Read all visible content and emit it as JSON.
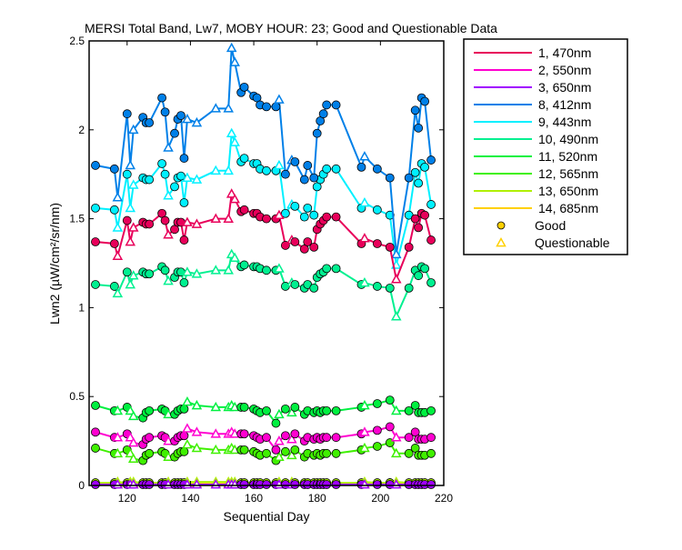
{
  "chart_data": {
    "type": "line",
    "title": "MERSI Total Band, Lw7, MOBY HOUR: 23;  Good and Questionable Data",
    "xlabel": "Sequential Day",
    "ylabel": "Lwn2 (µW/cm²/sr/nm)",
    "xlim": [
      108,
      220
    ],
    "ylim": [
      0,
      2.5
    ],
    "xticks": [
      120,
      140,
      160,
      180,
      200,
      220
    ],
    "yticks": [
      0,
      0.5,
      1,
      1.5,
      2,
      2.5
    ],
    "ytick_labels": [
      "0",
      "0.5",
      "1",
      "1.5",
      "2",
      "2.5"
    ],
    "grid": false,
    "legend_placement": "outside-right",
    "x": [
      110,
      116,
      117,
      120,
      121,
      122,
      125,
      126,
      127,
      131,
      132,
      133,
      135,
      136,
      137,
      138,
      139,
      142,
      148,
      152,
      153,
      154,
      156,
      157,
      160,
      161,
      162,
      164,
      167,
      168,
      170,
      172,
      173,
      176,
      177,
      179,
      180,
      181,
      182,
      183,
      186,
      194,
      195,
      199,
      203,
      205,
      209,
      211,
      212,
      213,
      214,
      216
    ],
    "quality": [
      "G",
      "G",
      "Q",
      "G",
      "Q",
      "Q",
      "G",
      "G",
      "G",
      "G",
      "G",
      "Q",
      "G",
      "G",
      "G",
      "G",
      "Q",
      "Q",
      "Q",
      "Q",
      "Q",
      "Q",
      "G",
      "G",
      "G",
      "G",
      "G",
      "G",
      "G",
      "Q",
      "G",
      "Q",
      "G",
      "G",
      "G",
      "G",
      "G",
      "G",
      "G",
      "G",
      "G",
      "G",
      "Q",
      "G",
      "G",
      "Q",
      "G",
      "G",
      "G",
      "G",
      "G",
      "G"
    ],
    "series": [
      {
        "name": "1, 470nm",
        "color": "#e8005a",
        "values": [
          1.37,
          1.36,
          1.29,
          1.49,
          1.37,
          1.45,
          1.48,
          1.47,
          1.47,
          1.53,
          1.49,
          1.41,
          1.44,
          1.48,
          1.48,
          1.38,
          1.48,
          1.47,
          1.5,
          1.5,
          1.64,
          1.61,
          1.54,
          1.55,
          1.53,
          1.53,
          1.51,
          1.5,
          1.5,
          1.52,
          1.35,
          1.38,
          1.37,
          1.33,
          1.37,
          1.34,
          1.44,
          1.47,
          1.49,
          1.51,
          1.51,
          1.36,
          1.39,
          1.36,
          1.34,
          1.16,
          1.34,
          1.5,
          1.45,
          1.53,
          1.52,
          1.38
        ]
      },
      {
        "name": "2, 550nm",
        "color": "#ff00d0",
        "values": [
          0.3,
          0.27,
          0.27,
          0.29,
          0.27,
          0.24,
          0.23,
          0.26,
          0.27,
          0.28,
          0.27,
          0.25,
          0.25,
          0.27,
          0.28,
          0.28,
          0.32,
          0.3,
          0.29,
          0.29,
          0.3,
          0.29,
          0.29,
          0.29,
          0.28,
          0.27,
          0.26,
          0.27,
          0.2,
          0.25,
          0.28,
          0.26,
          0.29,
          0.25,
          0.27,
          0.26,
          0.27,
          0.26,
          0.27,
          0.27,
          0.27,
          0.29,
          0.3,
          0.31,
          0.33,
          0.27,
          0.27,
          0.3,
          0.26,
          0.26,
          0.26,
          0.27
        ]
      },
      {
        "name": "3, 650nm",
        "color": "#a000ff",
        "values": [
          0.005,
          0.005,
          0.005,
          0.005,
          0.005,
          0.005,
          0.005,
          0.005,
          0.005,
          0.005,
          0.005,
          0.005,
          0.005,
          0.005,
          0.005,
          0.005,
          0.005,
          0.005,
          0.005,
          0.005,
          0.005,
          0.005,
          0.005,
          0.005,
          0.005,
          0.005,
          0.005,
          0.005,
          0.005,
          0.005,
          0.005,
          0.005,
          0.005,
          0.005,
          0.005,
          0.005,
          0.005,
          0.005,
          0.005,
          0.005,
          0.005,
          0.005,
          0.005,
          0.005,
          0.005,
          0.005,
          0.005,
          0.005,
          0.005,
          0.005,
          0.005,
          0.005
        ]
      },
      {
        "name": "8, 412nm",
        "color": "#0080e8",
        "values": [
          1.8,
          1.78,
          1.62,
          2.09,
          1.8,
          2.0,
          2.07,
          2.04,
          2.04,
          2.18,
          2.1,
          1.9,
          1.98,
          2.06,
          2.08,
          1.84,
          2.06,
          2.04,
          2.12,
          2.12,
          2.46,
          2.38,
          2.21,
          2.24,
          2.19,
          2.18,
          2.14,
          2.13,
          2.13,
          2.17,
          1.75,
          1.83,
          1.82,
          1.72,
          1.8,
          1.73,
          1.98,
          2.05,
          2.09,
          2.14,
          2.14,
          1.79,
          1.85,
          1.78,
          1.73,
          1.3,
          1.73,
          2.11,
          2.01,
          2.18,
          2.16,
          1.83
        ]
      },
      {
        "name": "9, 443nm",
        "color": "#00f0ff",
        "values": [
          1.56,
          1.55,
          1.45,
          1.75,
          1.56,
          1.69,
          1.73,
          1.72,
          1.72,
          1.81,
          1.75,
          1.63,
          1.68,
          1.73,
          1.74,
          1.59,
          1.73,
          1.72,
          1.77,
          1.77,
          1.98,
          1.93,
          1.82,
          1.84,
          1.81,
          1.81,
          1.78,
          1.77,
          1.77,
          1.8,
          1.53,
          1.58,
          1.57,
          1.51,
          1.56,
          1.52,
          1.68,
          1.72,
          1.75,
          1.78,
          1.78,
          1.56,
          1.59,
          1.55,
          1.52,
          1.24,
          1.52,
          1.76,
          1.7,
          1.81,
          1.79,
          1.58
        ]
      },
      {
        "name": "10, 490nm",
        "color": "#00f090",
        "values": [
          1.13,
          1.12,
          1.08,
          1.2,
          1.13,
          1.18,
          1.2,
          1.19,
          1.19,
          1.23,
          1.21,
          1.15,
          1.17,
          1.2,
          1.2,
          1.14,
          1.2,
          1.19,
          1.21,
          1.21,
          1.3,
          1.28,
          1.23,
          1.24,
          1.23,
          1.23,
          1.22,
          1.21,
          1.21,
          1.22,
          1.12,
          1.14,
          1.13,
          1.11,
          1.13,
          1.11,
          1.17,
          1.19,
          1.2,
          1.22,
          1.22,
          1.13,
          1.14,
          1.12,
          1.11,
          0.95,
          1.11,
          1.21,
          1.18,
          1.23,
          1.22,
          1.14
        ]
      },
      {
        "name": "11, 520nm",
        "color": "#00f040",
        "values": [
          0.45,
          0.42,
          0.42,
          0.44,
          0.42,
          0.39,
          0.38,
          0.41,
          0.42,
          0.43,
          0.42,
          0.4,
          0.4,
          0.42,
          0.43,
          0.43,
          0.47,
          0.45,
          0.44,
          0.44,
          0.45,
          0.44,
          0.44,
          0.44,
          0.43,
          0.42,
          0.41,
          0.42,
          0.35,
          0.4,
          0.43,
          0.41,
          0.44,
          0.4,
          0.42,
          0.41,
          0.42,
          0.41,
          0.42,
          0.42,
          0.42,
          0.44,
          0.45,
          0.46,
          0.48,
          0.42,
          0.42,
          0.45,
          0.41,
          0.41,
          0.41,
          0.42
        ]
      },
      {
        "name": "12, 565nm",
        "color": "#40f000",
        "values": [
          0.21,
          0.18,
          0.18,
          0.2,
          0.18,
          0.15,
          0.14,
          0.17,
          0.18,
          0.19,
          0.18,
          0.16,
          0.16,
          0.18,
          0.19,
          0.19,
          0.23,
          0.21,
          0.2,
          0.2,
          0.21,
          0.2,
          0.2,
          0.2,
          0.19,
          0.18,
          0.17,
          0.18,
          0.14,
          0.16,
          0.19,
          0.17,
          0.2,
          0.16,
          0.18,
          0.17,
          0.18,
          0.17,
          0.18,
          0.18,
          0.18,
          0.2,
          0.21,
          0.22,
          0.24,
          0.18,
          0.18,
          0.21,
          0.17,
          0.17,
          0.17,
          0.18
        ]
      },
      {
        "name": "13, 650nm",
        "color": "#b0f000",
        "values": [
          0.015,
          0.015,
          0.02,
          0.015,
          0.02,
          0.02,
          0.015,
          0.015,
          0.015,
          0.015,
          0.015,
          0.02,
          0.015,
          0.015,
          0.015,
          0.015,
          0.02,
          0.02,
          0.02,
          0.02,
          0.02,
          0.02,
          0.015,
          0.015,
          0.015,
          0.015,
          0.015,
          0.015,
          0.015,
          0.02,
          0.015,
          0.02,
          0.015,
          0.015,
          0.015,
          0.015,
          0.015,
          0.015,
          0.015,
          0.015,
          0.015,
          0.015,
          0.02,
          0.015,
          0.015,
          0.02,
          0.015,
          0.015,
          0.015,
          0.015,
          0.015,
          0.015
        ]
      },
      {
        "name": "14, 685nm",
        "color": "#ffd000",
        "values": [
          0.01,
          0.01,
          0.01,
          0.01,
          0.01,
          0.01,
          0.01,
          0.01,
          0.01,
          0.01,
          0.01,
          0.01,
          0.01,
          0.01,
          0.01,
          0.01,
          0.01,
          0.01,
          0.01,
          0.01,
          0.01,
          0.01,
          0.01,
          0.01,
          0.01,
          0.01,
          0.01,
          0.01,
          0.01,
          0.01,
          0.01,
          0.01,
          0.01,
          0.01,
          0.01,
          0.01,
          0.01,
          0.01,
          0.01,
          0.01,
          0.01,
          0.01,
          0.01,
          0.01,
          0.015,
          0.01,
          0.01,
          0.01,
          0.01,
          0.01,
          0.01,
          0.01
        ]
      }
    ],
    "marker_legend": [
      {
        "label": "Good",
        "marker": "circle",
        "color": "#ffd000"
      },
      {
        "label": "Questionable",
        "marker": "triangle",
        "color": "#ffd000"
      }
    ]
  }
}
